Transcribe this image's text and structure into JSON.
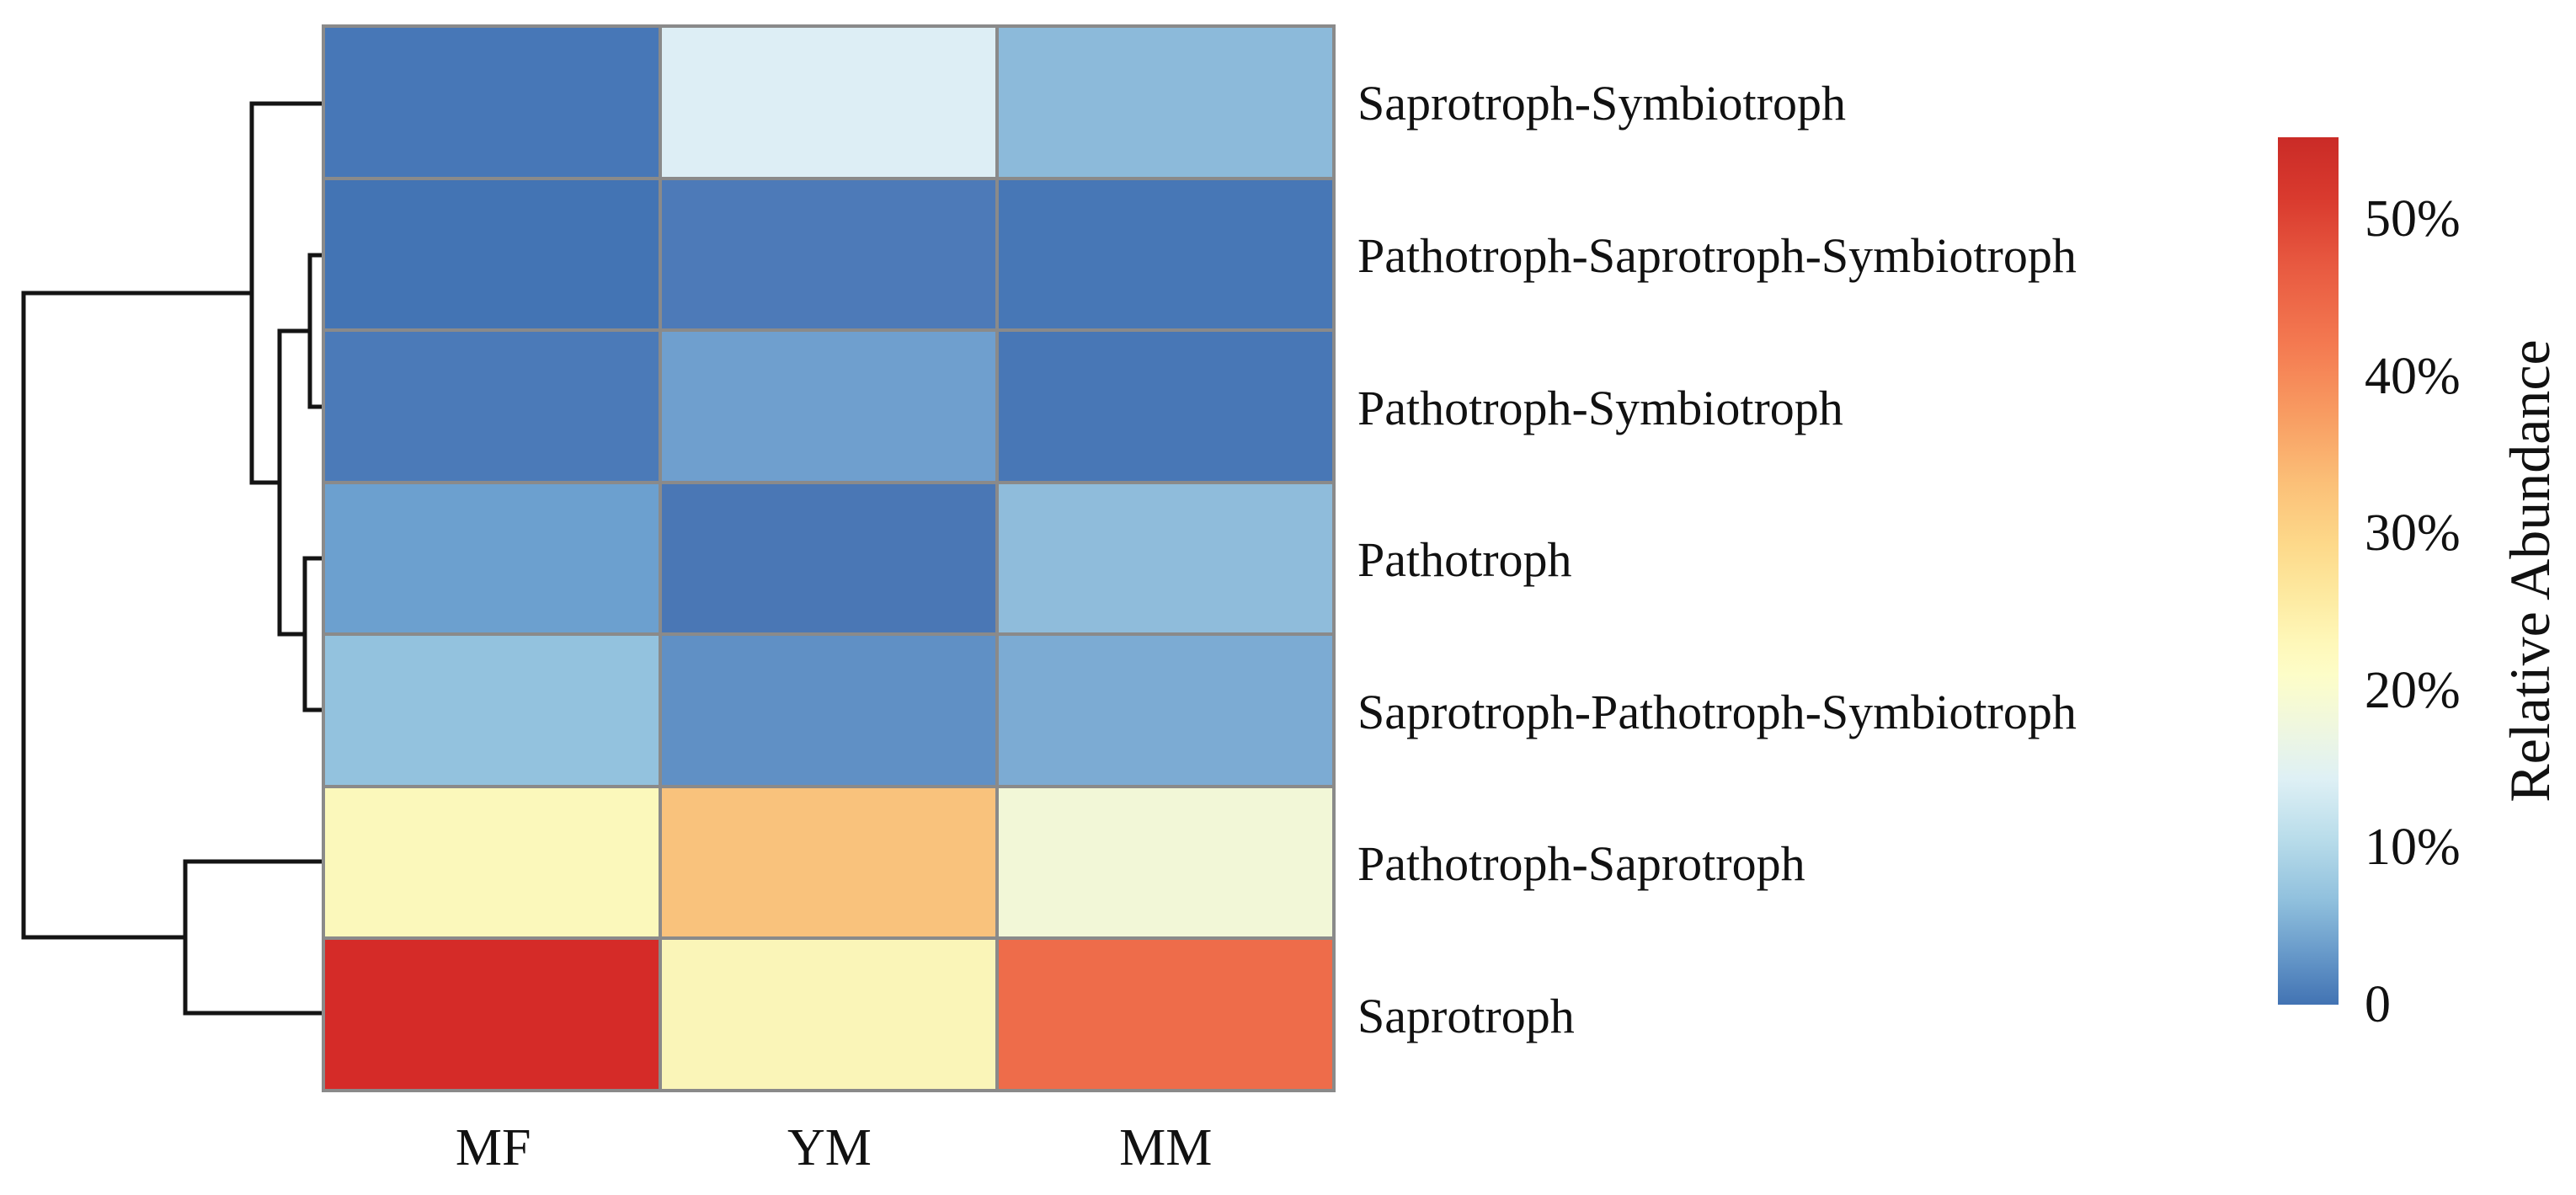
{
  "figure": {
    "background": "#ffffff",
    "text_color": "#111111",
    "grid_line_color": "#8a8a8a",
    "dendrogram_line_color": "#141414"
  },
  "chart_data": {
    "type": "heatmap",
    "title": "",
    "columns": [
      "MF",
      "YM",
      "MM"
    ],
    "rows": [
      "Saprotroph-Symbiotroph",
      "Pathotroph-Saprotroph-Symbiotroph",
      "Pathotroph-Symbiotroph",
      "Pathotroph",
      "Saprotroph-Pathotroph-Symbiotroph",
      "Pathotroph-Saprotroph",
      "Saprotroph"
    ],
    "values_estimated_percent": [
      [
        1,
        20,
        11
      ],
      [
        0.5,
        1.5,
        1
      ],
      [
        1.5,
        6,
        1.5
      ],
      [
        5.5,
        1,
        11
      ],
      [
        12,
        4,
        7
      ],
      [
        26,
        38,
        23
      ],
      [
        54,
        28,
        46
      ]
    ],
    "cell_colors": [
      [
        "#4777b7",
        "#ddeef5",
        "#8cbada"
      ],
      [
        "#4374b4",
        "#4d7ab8",
        "#4777b6"
      ],
      [
        "#4b7ab8",
        "#6f9fce",
        "#4877b6"
      ],
      [
        "#6ca0cf",
        "#4a77b5",
        "#8fbcdb"
      ],
      [
        "#93c2de",
        "#6090c5",
        "#7cabd3"
      ],
      [
        "#fbf8bb",
        "#f9c27c",
        "#f2f7d7"
      ],
      [
        "#d52b28",
        "#faf5b8",
        "#ee6c4a"
      ]
    ],
    "colorbar": {
      "label": "Relative Abundance",
      "ticks": [
        {
          "label": "50%",
          "value": 50
        },
        {
          "label": "40%",
          "value": 40
        },
        {
          "label": "30%",
          "value": 30
        },
        {
          "label": "20%",
          "value": 20
        },
        {
          "label": "10%",
          "value": 10
        },
        {
          "label": "0",
          "value": 0
        }
      ],
      "max_value": 55.2,
      "min_value": 0,
      "gradient_top_to_bottom": [
        {
          "pos": 0,
          "color": "#ca2b27"
        },
        {
          "pos": 7,
          "color": "#d93a2e"
        },
        {
          "pos": 15,
          "color": "#e85a41"
        },
        {
          "pos": 24,
          "color": "#f47a51"
        },
        {
          "pos": 32,
          "color": "#f89c62"
        },
        {
          "pos": 40,
          "color": "#fbc078"
        },
        {
          "pos": 47,
          "color": "#fdd98a"
        },
        {
          "pos": 53,
          "color": "#fdeaa1"
        },
        {
          "pos": 58,
          "color": "#fef7b8"
        },
        {
          "pos": 62,
          "color": "#fdfdc8"
        },
        {
          "pos": 68,
          "color": "#eff7df"
        },
        {
          "pos": 74,
          "color": "#def0f5"
        },
        {
          "pos": 81,
          "color": "#b8dcea"
        },
        {
          "pos": 88,
          "color": "#90c0dd"
        },
        {
          "pos": 94,
          "color": "#689aca"
        },
        {
          "pos": 100,
          "color": "#4273b3"
        }
      ]
    },
    "dendrogram": {
      "structure": "(((row2,row3),(row4,row5)),row1) joined with (row6,row7) at root",
      "segments": [
        [
          388,
          123,
          299,
          123
        ],
        [
          299,
          123,
          299,
          573
        ],
        [
          388,
          303,
          368,
          303
        ],
        [
          388,
          483,
          368,
          483
        ],
        [
          368,
          303,
          368,
          483
        ],
        [
          368,
          393,
          332,
          393
        ],
        [
          388,
          663,
          362,
          663
        ],
        [
          388,
          843,
          362,
          843
        ],
        [
          362,
          663,
          362,
          843
        ],
        [
          362,
          753,
          332,
          753
        ],
        [
          332,
          393,
          332,
          753
        ],
        [
          332,
          573,
          299,
          573
        ],
        [
          299,
          348,
          28,
          348
        ],
        [
          388,
          1023,
          220,
          1023
        ],
        [
          388,
          1203,
          220,
          1203
        ],
        [
          220,
          1023,
          220,
          1203
        ],
        [
          220,
          1113,
          28,
          1113
        ],
        [
          28,
          348,
          28,
          1113
        ]
      ]
    },
    "layout": {
      "legend_position": "right",
      "grid": true,
      "row_label_side": "right",
      "column_label_side": "bottom"
    }
  }
}
